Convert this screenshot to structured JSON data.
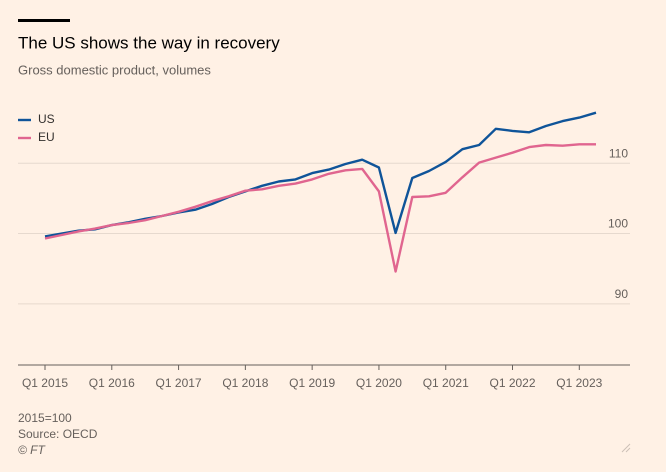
{
  "chart_data": {
    "type": "line",
    "title": "The US shows the way in recovery",
    "subtitle": "Gross domestic product, volumes",
    "notes": [
      "2015=100",
      "Source: OECD",
      "© FT"
    ],
    "categories": [
      "Q1 2015",
      null,
      null,
      null,
      "Q1 2016",
      null,
      null,
      null,
      "Q1 2017",
      null,
      null,
      null,
      "Q1 2018",
      null,
      null,
      null,
      "Q1 2019",
      null,
      null,
      null,
      "Q1 2020",
      null,
      null,
      null,
      "Q1 2021",
      null,
      null,
      null,
      "Q1 2022",
      null,
      null,
      null,
      "Q1 2023",
      null
    ],
    "series": [
      {
        "name": "US",
        "color": "#0f5499",
        "values": [
          99.6,
          100.0,
          100.4,
          100.6,
          101.2,
          101.6,
          102.1,
          102.5,
          103.0,
          103.4,
          104.2,
          105.2,
          106.0,
          106.8,
          107.4,
          107.7,
          108.6,
          109.1,
          109.9,
          110.5,
          109.4,
          100.1,
          107.9,
          108.9,
          110.2,
          112.0,
          112.6,
          114.9,
          114.6,
          114.4,
          115.3,
          116.0,
          116.5,
          117.2
        ]
      },
      {
        "name": "EU",
        "color": "#e0658f",
        "values": [
          99.3,
          99.8,
          100.3,
          100.7,
          101.2,
          101.5,
          101.9,
          102.5,
          103.1,
          103.8,
          104.6,
          105.3,
          106.1,
          106.3,
          106.8,
          107.1,
          107.7,
          108.5,
          109.0,
          109.2,
          106.0,
          94.6,
          105.2,
          105.3,
          105.8,
          108.0,
          110.1,
          110.8,
          111.5,
          112.3,
          112.6,
          112.5,
          112.7,
          112.7
        ]
      }
    ],
    "ylim": [
      81.3,
      119
    ],
    "yticks": [
      90,
      100,
      110
    ],
    "grid": true,
    "legend": "top-left"
  }
}
